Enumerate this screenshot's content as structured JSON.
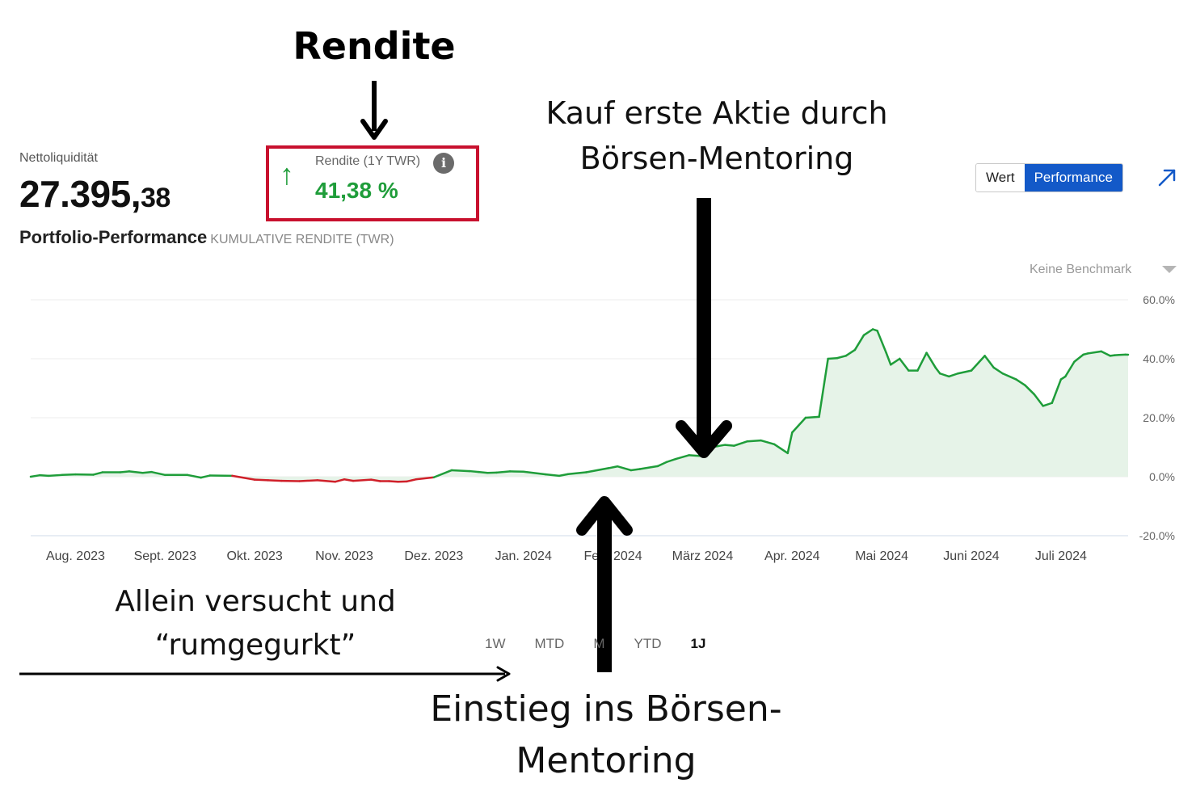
{
  "header": {
    "net_liquidity_label": "Nettoliquidität",
    "net_liquidity_int": "27.395,",
    "net_liquidity_dec": "38",
    "portfolio_title": "Portfolio-Performance",
    "portfolio_subtitle": "KUMULATIVE RENDITE (TWR)"
  },
  "rendite": {
    "label": "Rendite (1Y TWR)",
    "value": "41,38 %",
    "trend_glyph": "↑",
    "trend_icon": "up-arrow-icon",
    "info_glyph": "i",
    "positive_color": "#1f9d3a",
    "box_color": "#c8102e"
  },
  "toggle": {
    "wert_label": "Wert",
    "performance_label": "Performance",
    "active": "Performance",
    "active_color": "#1359c8"
  },
  "benchmark": {
    "label": "Keine Benchmark"
  },
  "ranges": {
    "w1": "1W",
    "mtd": "MTD",
    "m": "M",
    "ytd": "YTD",
    "y1": "1J",
    "active": "1J"
  },
  "annotations": {
    "rendite_title": "Rendite",
    "kauf_line1": "Kauf erste Aktie durch",
    "kauf_line2": "Börsen-Mentoring",
    "allein_line1": "Allein versucht und",
    "allein_line2": "“rumgegurkt”",
    "einstieg_line1": "Einstieg ins Börsen-",
    "einstieg_line2": "Mentoring"
  },
  "chart_data": {
    "type": "area",
    "title": "",
    "ylabel": "",
    "ylim": [
      -20,
      60
    ],
    "y_ticks": [
      "60.0%",
      "40.0%",
      "20.0%",
      "0.0%",
      "-20.0%"
    ],
    "y_tick_values": [
      60,
      40,
      20,
      0,
      -20
    ],
    "x_labels": [
      "Aug. 2023",
      "Sept. 2023",
      "Okt. 2023",
      "Nov. 2023",
      "Dez. 2023",
      "Jan. 2024",
      "Feb. 2024",
      "März 2024",
      "Apr. 2024",
      "Mai 2024",
      "Juni 2024",
      "Juli 2024"
    ],
    "x_label_positions": [
      0.5,
      1.5,
      2.5,
      3.5,
      4.5,
      5.5,
      6.5,
      7.5,
      8.5,
      9.5,
      10.5,
      11.5
    ],
    "x_range": [
      0,
      12.25
    ],
    "grid": true,
    "positive_color": "#1f9d3a",
    "negative_color": "#d0202a",
    "fill_color": "#e6f3e8",
    "series": [
      {
        "x": [
          0.0,
          0.1,
          0.2,
          0.35,
          0.5,
          0.7,
          0.8,
          1.0,
          1.1,
          1.25,
          1.35,
          1.5,
          1.75,
          1.9,
          2.0,
          2.25,
          2.5,
          2.65,
          2.8,
          3.0,
          3.2,
          3.4,
          3.5,
          3.6,
          3.8,
          3.9,
          4.0,
          4.1,
          4.2,
          4.3,
          4.5,
          4.7,
          4.9,
          5.0,
          5.1,
          5.2,
          5.35,
          5.5,
          5.75,
          5.9,
          6.0,
          6.2,
          6.45,
          6.55,
          6.7,
          6.8,
          7.0,
          7.1,
          7.2,
          7.35,
          7.5,
          7.6,
          7.75,
          7.85,
          8.0,
          8.15,
          8.3,
          8.45,
          8.5,
          8.65,
          8.8,
          8.9,
          9.0,
          9.1,
          9.2,
          9.3,
          9.4,
          9.45,
          9.55,
          9.6,
          9.7,
          9.8,
          9.9,
          10.0,
          10.1,
          10.15,
          10.25,
          10.35,
          10.5,
          10.65,
          10.75,
          10.85,
          11.0,
          11.1,
          11.2,
          11.3,
          11.4,
          11.5,
          11.55,
          11.65,
          11.75,
          11.8,
          11.95,
          12.05,
          12.1,
          12.15,
          12.22,
          12.25
        ],
        "y": [
          0.0,
          0.5,
          0.3,
          0.6,
          0.8,
          0.7,
          1.5,
          1.5,
          1.8,
          1.3,
          1.6,
          0.6,
          0.6,
          -0.3,
          0.4,
          0.3,
          -1.0,
          -1.2,
          -1.4,
          -1.5,
          -1.2,
          -1.7,
          -0.9,
          -1.4,
          -1.0,
          -1.5,
          -1.5,
          -1.7,
          -1.6,
          -0.9,
          -0.2,
          2.2,
          1.9,
          1.6,
          1.3,
          1.4,
          1.8,
          1.7,
          0.8,
          0.3,
          0.9,
          1.5,
          2.9,
          3.5,
          2.2,
          2.6,
          3.6,
          5.0,
          6.0,
          7.3,
          7.0,
          10.0,
          10.8,
          10.5,
          12.0,
          12.3,
          11.0,
          8.0,
          15.0,
          20.0,
          20.3,
          40.0,
          40.2,
          41.0,
          43.0,
          48.0,
          50.0,
          49.5,
          42.0,
          38.0,
          40.0,
          36.0,
          36.0,
          42.0,
          37.0,
          35.0,
          34.0,
          35.0,
          36.0,
          41.0,
          37.0,
          35.0,
          33.0,
          31.0,
          28.0,
          24.0,
          25.0,
          33.0,
          34.0,
          39.0,
          41.4,
          41.8,
          42.5,
          41.0,
          41.2,
          41.3,
          41.4,
          41.38
        ]
      }
    ]
  }
}
